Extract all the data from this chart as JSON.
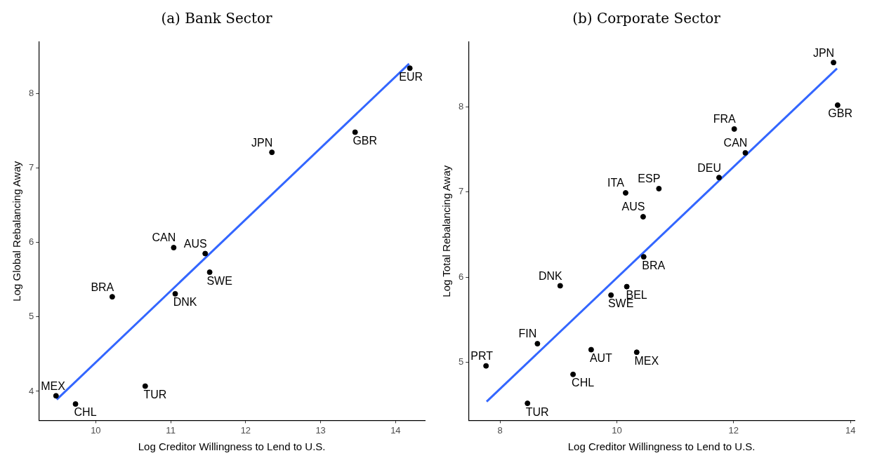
{
  "chart_data": [
    {
      "type": "scatter",
      "title": "(a) Bank Sector",
      "xlabel": "Log Creditor Willingness to Lend to U.S.",
      "ylabel": "Log Global Rebalancing Away",
      "xlim": [
        9.24,
        14.39
      ],
      "ylim": [
        3.61,
        8.69
      ],
      "xticks": [
        10,
        11,
        12,
        13,
        14
      ],
      "yticks": [
        4,
        5,
        6,
        7,
        8
      ],
      "grid": false,
      "legend": false,
      "marker": "circle",
      "series": [
        {
          "type": "scatter",
          "color": "#000000",
          "x": [
            14.19,
            13.46,
            12.35,
            11.04,
            11.46,
            11.52,
            11.06,
            10.22,
            10.66,
            9.47,
            9.73
          ],
          "values": [
            8.34,
            7.48,
            7.21,
            5.93,
            5.85,
            5.6,
            5.31,
            5.27,
            4.07,
            3.94,
            3.83
          ]
        },
        {
          "type": "line",
          "color": "#3366ff",
          "marker": "none",
          "x": [
            9.48,
            14.18
          ],
          "values": [
            3.89,
            8.4
          ]
        }
      ],
      "annotations": [
        {
          "text": "EUR",
          "x": 14.19,
          "y": 8.34
        },
        {
          "text": "GBR",
          "x": 13.46,
          "y": 7.48
        },
        {
          "text": "JPN",
          "x": 12.35,
          "y": 7.21
        },
        {
          "text": "CAN",
          "x": 11.04,
          "y": 5.93
        },
        {
          "text": "AUS",
          "x": 11.46,
          "y": 5.85
        },
        {
          "text": "SWE",
          "x": 11.52,
          "y": 5.6
        },
        {
          "text": "DNK",
          "x": 11.06,
          "y": 5.31
        },
        {
          "text": "BRA",
          "x": 10.22,
          "y": 5.27
        },
        {
          "text": "TUR",
          "x": 10.66,
          "y": 4.07
        },
        {
          "text": "MEX",
          "x": 9.47,
          "y": 3.94
        },
        {
          "text": "CHL",
          "x": 9.73,
          "y": 3.83
        }
      ]
    },
    {
      "type": "scatter",
      "title": "(b) Corporate Sector",
      "xlabel": "Log Creditor Willingness to Lend to U.S.",
      "ylabel": "Log Total Rebalancing Away",
      "xlim": [
        7.46,
        14.07
      ],
      "ylim": [
        4.32,
        8.76
      ],
      "xticks": [
        8,
        10,
        12,
        14
      ],
      "yticks": [
        5,
        6,
        7,
        8
      ],
      "grid": false,
      "legend": false,
      "marker": "circle",
      "series": [
        {
          "type": "scatter",
          "color": "#000000",
          "x": [
            13.71,
            13.78,
            12.01,
            12.2,
            11.75,
            10.72,
            10.15,
            10.45,
            10.46,
            10.17,
            9.9,
            9.03,
            8.64,
            9.56,
            10.34,
            9.25,
            7.76,
            8.47
          ],
          "values": [
            8.52,
            8.02,
            7.74,
            7.46,
            7.17,
            7.04,
            6.99,
            6.71,
            6.24,
            5.89,
            5.79,
            5.9,
            5.22,
            5.15,
            5.12,
            4.86,
            4.96,
            4.52
          ]
        },
        {
          "type": "line",
          "color": "#3366ff",
          "marker": "none",
          "x": [
            7.77,
            13.77
          ],
          "values": [
            4.54,
            8.45
          ]
        }
      ],
      "annotations": [
        {
          "text": "JPN",
          "x": 13.71,
          "y": 8.52
        },
        {
          "text": "GBR",
          "x": 13.78,
          "y": 8.02
        },
        {
          "text": "FRA",
          "x": 12.01,
          "y": 7.74
        },
        {
          "text": "CAN",
          "x": 12.2,
          "y": 7.46
        },
        {
          "text": "DEU",
          "x": 11.75,
          "y": 7.17
        },
        {
          "text": "ESP",
          "x": 10.72,
          "y": 7.04
        },
        {
          "text": "ITA",
          "x": 10.15,
          "y": 6.99
        },
        {
          "text": "AUS",
          "x": 10.45,
          "y": 6.71
        },
        {
          "text": "BRA",
          "x": 10.46,
          "y": 6.24
        },
        {
          "text": "BEL",
          "x": 10.17,
          "y": 5.89
        },
        {
          "text": "SWE",
          "x": 9.9,
          "y": 5.79
        },
        {
          "text": "DNK",
          "x": 9.03,
          "y": 5.9
        },
        {
          "text": "FIN",
          "x": 8.64,
          "y": 5.22
        },
        {
          "text": "AUT",
          "x": 9.56,
          "y": 5.15
        },
        {
          "text": "MEX",
          "x": 10.34,
          "y": 5.12
        },
        {
          "text": "CHL",
          "x": 9.25,
          "y": 4.86
        },
        {
          "text": "PRT",
          "x": 7.76,
          "y": 4.96
        },
        {
          "text": "TUR",
          "x": 8.47,
          "y": 4.52
        }
      ]
    }
  ]
}
